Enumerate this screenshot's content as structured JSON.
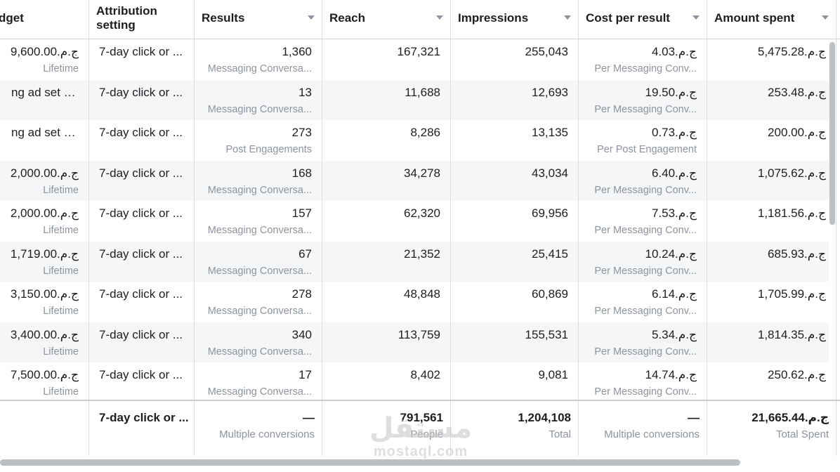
{
  "columns": [
    {
      "key": "budget",
      "label": "dget",
      "sortable": false
    },
    {
      "key": "attribution",
      "label": "Attribution setting",
      "sortable": false
    },
    {
      "key": "results",
      "label": "Results",
      "sortable": true
    },
    {
      "key": "reach",
      "label": "Reach",
      "sortable": true
    },
    {
      "key": "impressions",
      "label": "Impressions",
      "sortable": true
    },
    {
      "key": "cost",
      "label": "Cost per result",
      "sortable": true
    },
    {
      "key": "spent",
      "label": "Amount spent",
      "sortable": true
    }
  ],
  "rows": [
    {
      "budget": "ج.م.9,600.00",
      "budget_sub": "Lifetime",
      "attribution": "7-day click or ...",
      "results": "1,360",
      "results_sub": "Messaging Conversa...",
      "reach": "167,321",
      "impressions": "255,043",
      "cost": "ج.م.4.03",
      "cost_sub": "Per Messaging Conv...",
      "spent": "ج.م.5,475.28"
    },
    {
      "budget": "ng ad set bu...",
      "budget_sub": "",
      "attribution": "7-day click or ...",
      "results": "13",
      "results_sub": "Messaging Conversa...",
      "reach": "11,688",
      "impressions": "12,693",
      "cost": "ج.م.19.50",
      "cost_sub": "Per Messaging Conv...",
      "spent": "ج.م.253.48"
    },
    {
      "budget": "ng ad set bu...",
      "budget_sub": "",
      "attribution": "7-day click or ...",
      "results": "273",
      "results_sub": "Post Engagements",
      "reach": "8,286",
      "impressions": "13,135",
      "cost": "ج.م.0.73",
      "cost_sub": "Per Post Engagement",
      "spent": "ج.م.200.00"
    },
    {
      "budget": "ج.م.2,000.00",
      "budget_sub": "Lifetime",
      "attribution": "7-day click or ...",
      "results": "168",
      "results_sub": "Messaging Conversa...",
      "reach": "34,278",
      "impressions": "43,034",
      "cost": "ج.م.6.40",
      "cost_sub": "Per Messaging Conv...",
      "spent": "ج.م.1,075.62"
    },
    {
      "budget": "ج.م.2,000.00",
      "budget_sub": "Lifetime",
      "attribution": "7-day click or ...",
      "results": "157",
      "results_sub": "Messaging Conversa...",
      "reach": "62,320",
      "impressions": "69,956",
      "cost": "ج.م.7.53",
      "cost_sub": "Per Messaging Conv...",
      "spent": "ج.م.1,181.56"
    },
    {
      "budget": "ج.م.1,719.00",
      "budget_sub": "Lifetime",
      "attribution": "7-day click or ...",
      "results": "67",
      "results_sub": "Messaging Conversa...",
      "reach": "21,352",
      "impressions": "25,415",
      "cost": "ج.م.10.24",
      "cost_sub": "Per Messaging Conv...",
      "spent": "ج.م.685.93"
    },
    {
      "budget": "ج.م.3,150.00",
      "budget_sub": "Lifetime",
      "attribution": "7-day click or ...",
      "results": "278",
      "results_sub": "Messaging Conversa...",
      "reach": "48,848",
      "impressions": "60,869",
      "cost": "ج.م.6.14",
      "cost_sub": "Per Messaging Conv...",
      "spent": "ج.م.1,705.99"
    },
    {
      "budget": "ج.م.3,400.00",
      "budget_sub": "Lifetime",
      "attribution": "7-day click or ...",
      "results": "340",
      "results_sub": "Messaging Conversa...",
      "reach": "113,759",
      "impressions": "155,531",
      "cost": "ج.م.5.34",
      "cost_sub": "Per Messaging Conv...",
      "spent": "ج.م.1,814.35"
    },
    {
      "budget": "ج.م.7,500.00",
      "budget_sub": "Lifetime",
      "attribution": "7-day click or ...",
      "results": "17",
      "results_sub": "Messaging Conversa...",
      "reach": "8,402",
      "impressions": "9,081",
      "cost": "ج.م.14.74",
      "cost_sub": "Per Messaging Conv...",
      "spent": "ج.م.250.62"
    }
  ],
  "totals": {
    "attribution": "7-day click or ...",
    "results": "—",
    "results_sub": "Multiple conversions",
    "reach": "791,561",
    "reach_sub": "People",
    "impressions": "1,204,108",
    "impressions_sub": "Total",
    "cost": "—",
    "cost_sub": "Multiple conversions",
    "spent": "ج.م.21,665.44",
    "spent_sub": "Total Spent"
  },
  "watermark": {
    "line1": "مستقل",
    "line2": "mostaql.com"
  },
  "colors": {
    "text": "#1c1e21",
    "muted": "#8d949e",
    "alt_row": "#f5f6f7",
    "border": "#dadde1"
  }
}
